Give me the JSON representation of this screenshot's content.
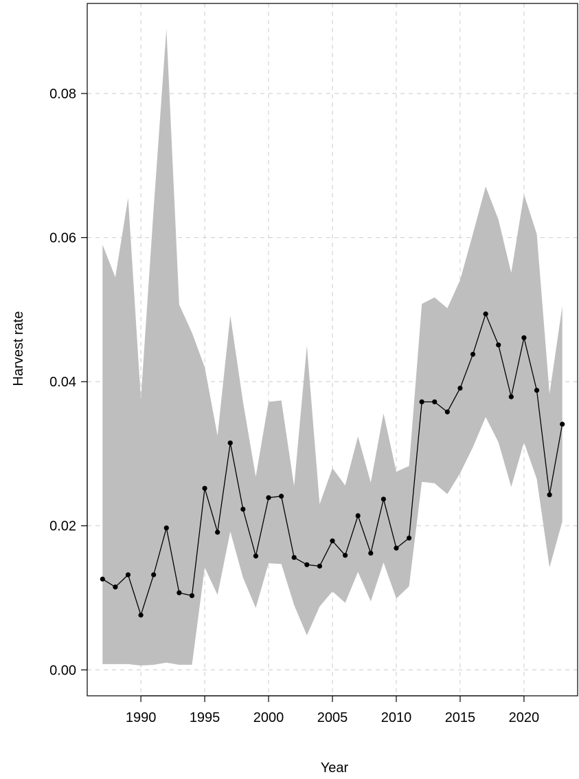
{
  "chart_data": {
    "type": "line",
    "xlabel": "Year",
    "ylabel": "Harvest rate",
    "xlim": [
      1985.8,
      2024.2
    ],
    "ylim": [
      -0.0036,
      0.0925
    ],
    "x_ticks": [
      1990,
      1995,
      2000,
      2005,
      2010,
      2015,
      2020
    ],
    "x_tick_labels": [
      "1990",
      "1995",
      "2000",
      "2005",
      "2010",
      "2015",
      "2020"
    ],
    "y_ticks": [
      0,
      0.02,
      0.04,
      0.06,
      0.08
    ],
    "y_tick_labels": [
      "0.00",
      "0.02",
      "0.04",
      "0.06",
      "0.08"
    ],
    "grid": true,
    "x": [
      1987,
      1988,
      1989,
      1990,
      1991,
      1992,
      1993,
      1994,
      1995,
      1996,
      1997,
      1998,
      1999,
      2000,
      2001,
      2002,
      2003,
      2004,
      2005,
      2006,
      2007,
      2008,
      2009,
      2010,
      2011,
      2012,
      2013,
      2014,
      2015,
      2016,
      2017,
      2018,
      2019,
      2020,
      2021,
      2022,
      2023
    ],
    "series": [
      {
        "values": [
          0.0126,
          0.0115,
          0.0132,
          0.0076,
          0.0132,
          0.0197,
          0.0107,
          0.0103,
          0.0252,
          0.0191,
          0.0315,
          0.0223,
          0.0158,
          0.0239,
          0.0241,
          0.0156,
          0.0146,
          0.0144,
          0.0179,
          0.0159,
          0.0214,
          0.0162,
          0.0237,
          0.0169,
          0.0183,
          0.0372,
          0.0372,
          0.0358,
          0.0391,
          0.0438,
          0.0494,
          0.0451,
          0.0379,
          0.0461,
          0.0388,
          0.0243,
          0.0341
        ],
        "lower": [
          0.0008,
          0.0008,
          0.0008,
          0.0006,
          0.0007,
          0.001,
          0.0007,
          0.0007,
          0.0142,
          0.0104,
          0.0192,
          0.0128,
          0.0086,
          0.0148,
          0.0147,
          0.009,
          0.0048,
          0.0088,
          0.0109,
          0.0093,
          0.0136,
          0.0095,
          0.0149,
          0.0099,
          0.0116,
          0.0261,
          0.0259,
          0.0244,
          0.0273,
          0.0309,
          0.0351,
          0.0316,
          0.0254,
          0.0316,
          0.0265,
          0.0142,
          0.0206
        ],
        "upper": [
          0.059,
          0.0545,
          0.0655,
          0.0376,
          0.064,
          0.089,
          0.0507,
          0.0468,
          0.042,
          0.0325,
          0.0492,
          0.0372,
          0.0268,
          0.0372,
          0.0374,
          0.0255,
          0.045,
          0.023,
          0.028,
          0.0256,
          0.0324,
          0.026,
          0.0356,
          0.0275,
          0.0283,
          0.0508,
          0.0517,
          0.0502,
          0.0541,
          0.0605,
          0.0671,
          0.0625,
          0.0551,
          0.066,
          0.0605,
          0.0383,
          0.0505
        ]
      }
    ],
    "colors": {
      "band": "#bebebe",
      "line": "#000000",
      "grid": "#d3d3d3",
      "axis": "#000000"
    }
  }
}
